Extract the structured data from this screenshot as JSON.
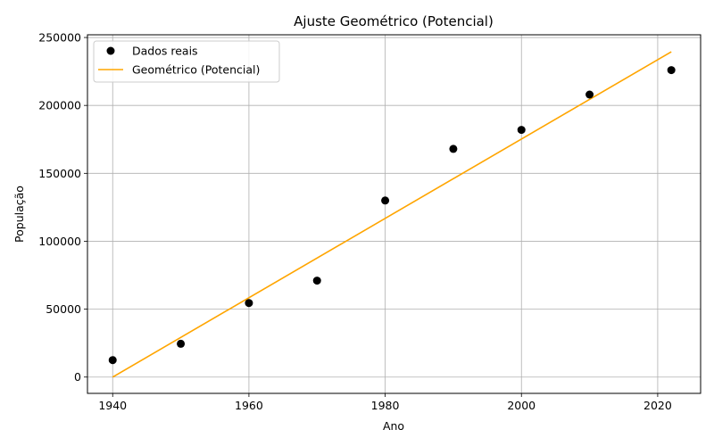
{
  "chart_data": {
    "type": "scatter",
    "title": "Ajuste Geométrico (Potencial)",
    "xlabel": "Ano",
    "ylabel": "População",
    "xlim": [
      1936.3,
      2026.3
    ],
    "ylim": [
      -12000,
      252000
    ],
    "xticks": [
      1940,
      1960,
      1980,
      2000,
      2020
    ],
    "yticks": [
      0,
      50000,
      100000,
      150000,
      200000,
      250000
    ],
    "grid": true,
    "legend_position": "top-left",
    "series": [
      {
        "name": "Dados reais",
        "kind": "scatter",
        "color": "#000000",
        "x": [
          1940,
          1950,
          1960,
          1970,
          1980,
          1990,
          2000,
          2010,
          2022
        ],
        "y": [
          12500,
          24500,
          54500,
          71000,
          130000,
          168000,
          182000,
          208000,
          226000
        ]
      },
      {
        "name": "Geométrico (Potencial)",
        "kind": "line",
        "color": "#ffa500",
        "x": [
          1940,
          2022
        ],
        "y": [
          0,
          239500
        ]
      }
    ]
  }
}
